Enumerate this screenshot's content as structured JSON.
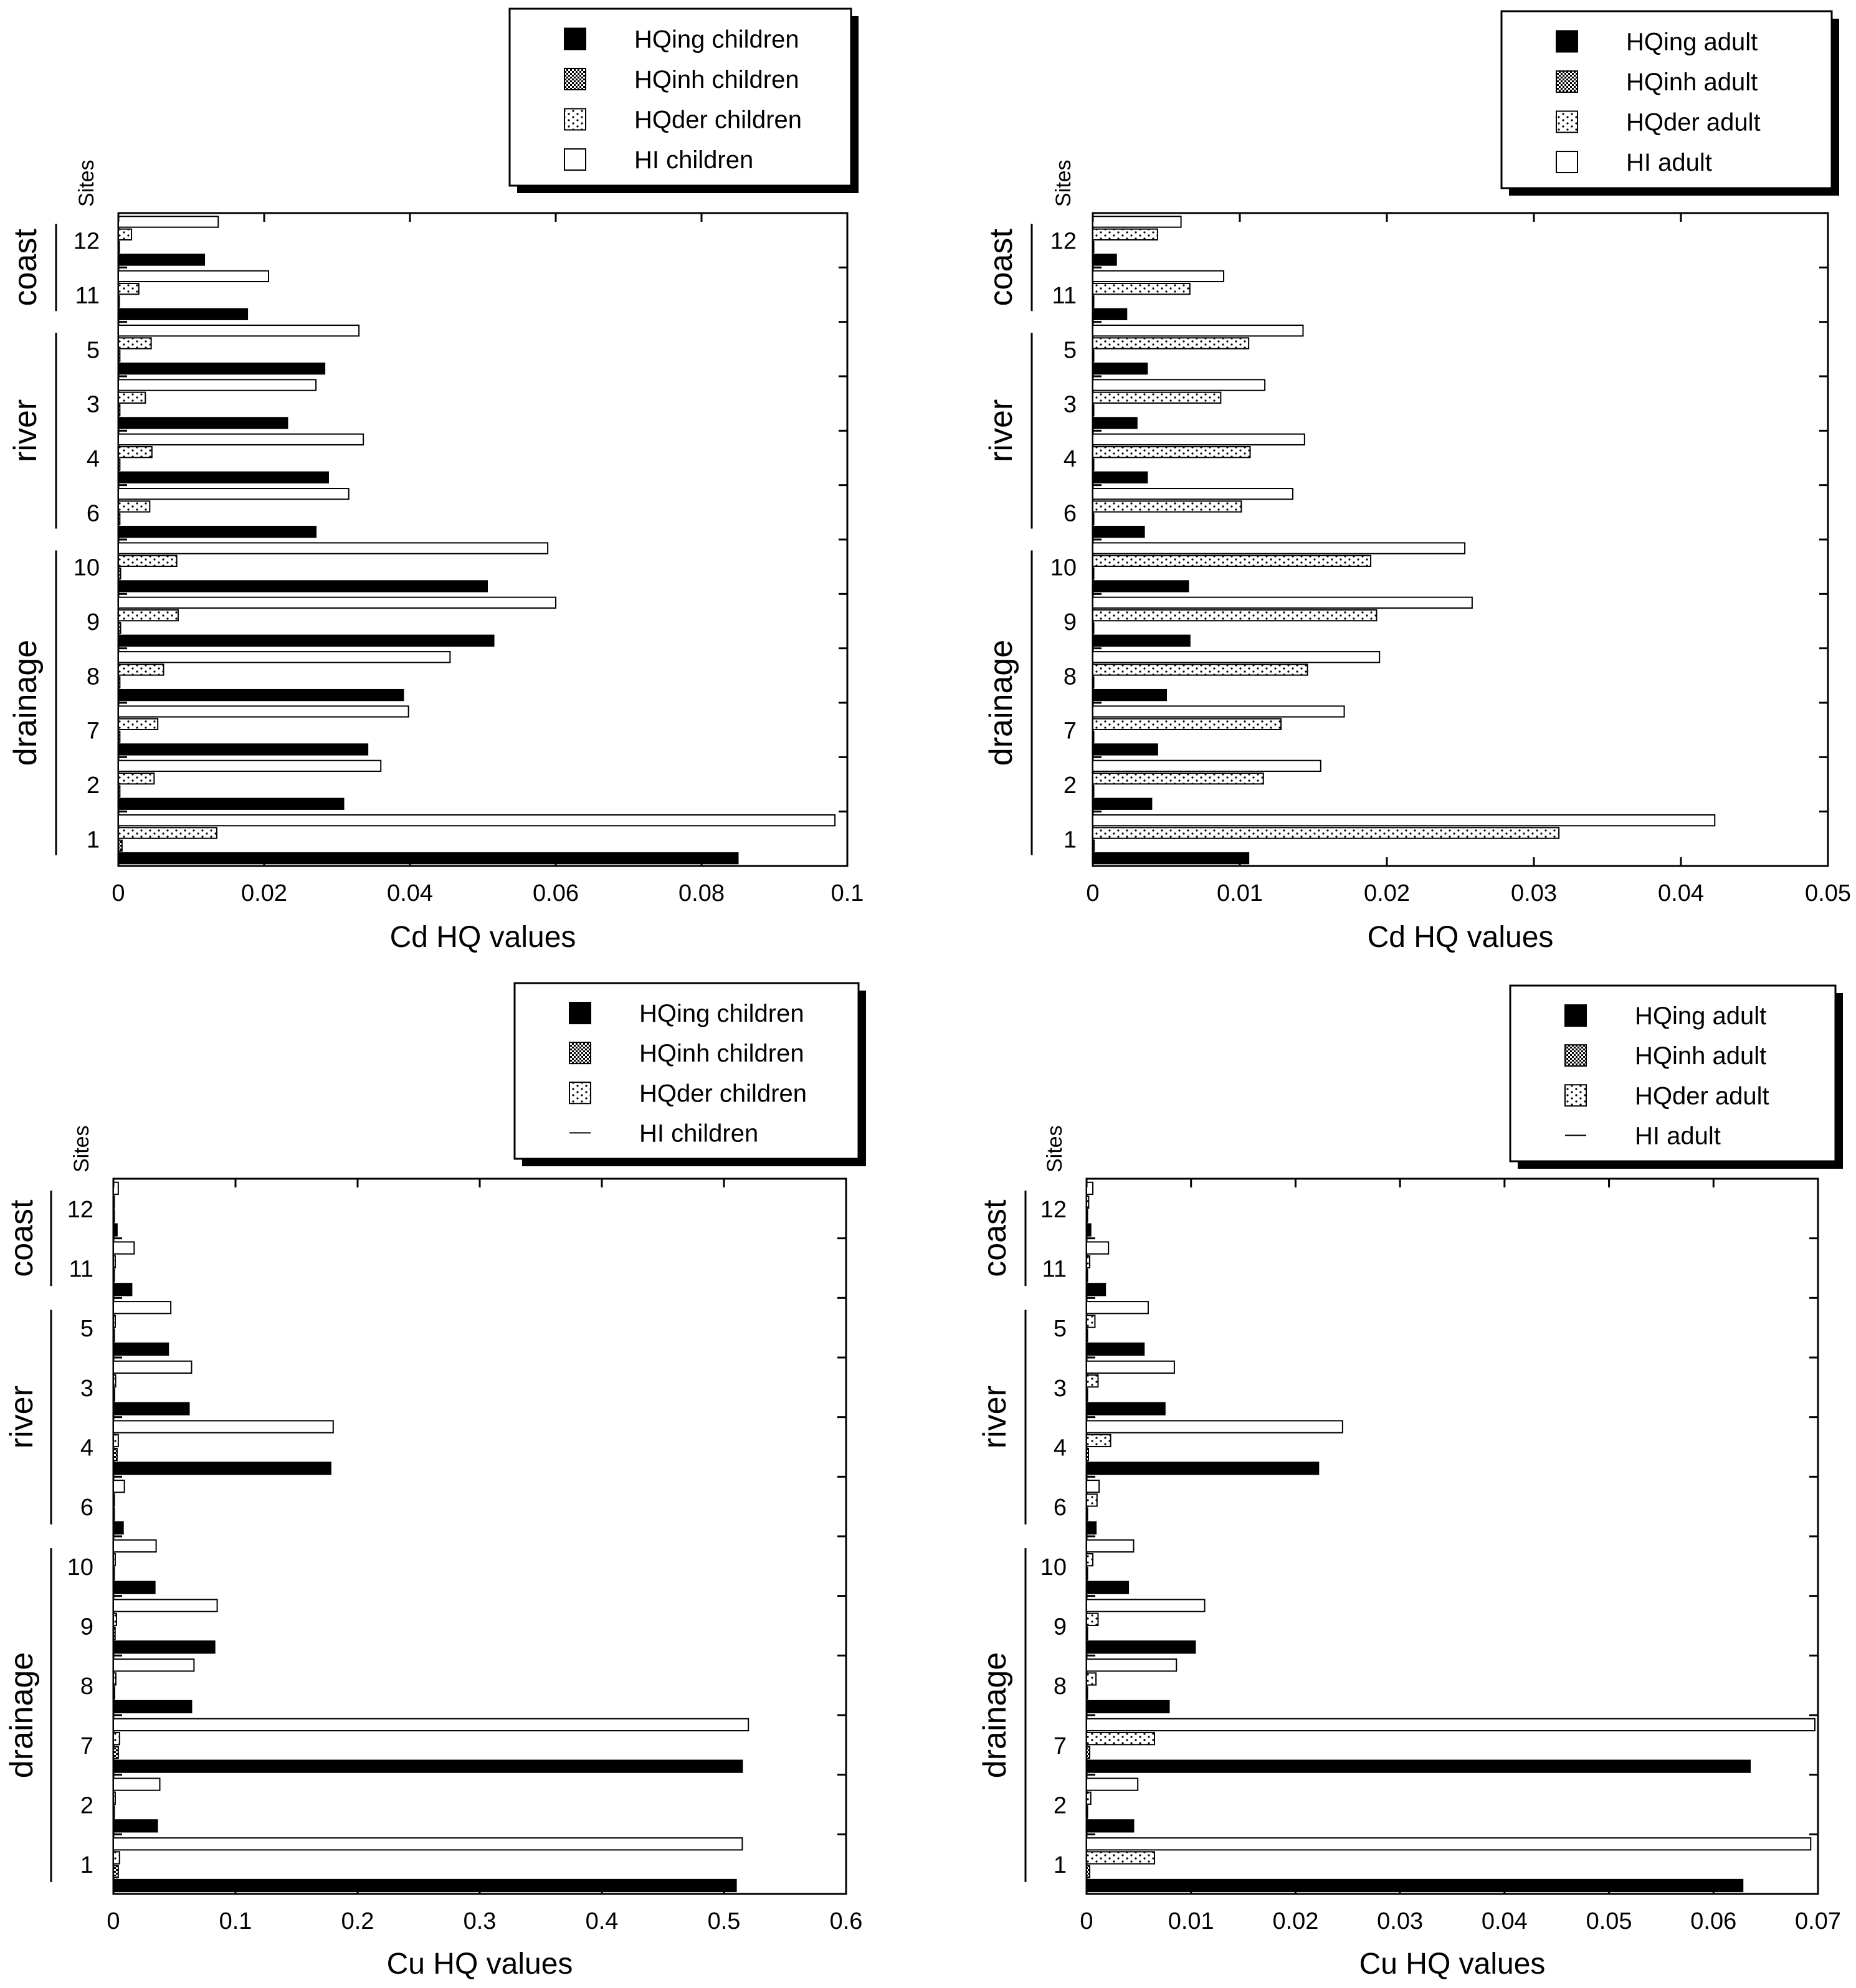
{
  "charts": [
    {
      "id": "cd-children",
      "chart_data": {
        "type": "bar",
        "orientation": "horizontal",
        "title": "",
        "xlabel": "Cd HQ values",
        "ylabel": "Sites",
        "xlim": [
          0,
          0.1
        ],
        "xticks": [
          "0",
          "0.02",
          "0.04",
          "0.06",
          "0.08",
          "0.1"
        ],
        "categories": [
          "12",
          "11",
          "5",
          "3",
          "4",
          "6",
          "10",
          "9",
          "8",
          "7",
          "2",
          "1"
        ],
        "groups": [
          {
            "label": "coast",
            "sites": [
              "12",
              "11"
            ]
          },
          {
            "label": "river",
            "sites": [
              "5",
              "3",
              "4",
              "6"
            ]
          },
          {
            "label": "drainage",
            "sites": [
              "10",
              "9",
              "8",
              "7",
              "2",
              "1"
            ]
          }
        ],
        "series": [
          {
            "name": "HQing children",
            "pattern": "solid",
            "values": [
              0.0118,
              0.0177,
              0.0283,
              0.0232,
              0.0288,
              0.0271,
              0.0506,
              0.0515,
              0.0391,
              0.0342,
              0.0309,
              0.085
            ]
          },
          {
            "name": "HQinh children",
            "pattern": "dense",
            "values": [
              0.0001,
              0.0001,
              0.0002,
              0.0002,
              0.0002,
              0.0002,
              0.0003,
              0.0003,
              0.0002,
              0.0002,
              0.0002,
              0.0005
            ]
          },
          {
            "name": "HQder children",
            "pattern": "dots",
            "values": [
              0.0018,
              0.0028,
              0.0045,
              0.0037,
              0.0046,
              0.0043,
              0.008,
              0.0082,
              0.0062,
              0.0054,
              0.0049,
              0.0135
            ]
          },
          {
            "name": "HI children",
            "pattern": "open",
            "values": [
              0.0137,
              0.0206,
              0.033,
              0.0271,
              0.0336,
              0.0316,
              0.0589,
              0.06,
              0.0455,
              0.0398,
              0.036,
              0.0983
            ]
          }
        ],
        "legend_position": "top-right"
      }
    },
    {
      "id": "cd-adult",
      "chart_data": {
        "type": "bar",
        "orientation": "horizontal",
        "title": "",
        "xlabel": "Cd HQ values",
        "ylabel": "Sites",
        "xlim": [
          0,
          0.05
        ],
        "xticks": [
          "0",
          "0.01",
          "0.02",
          "0.03",
          "0.04",
          "0.05"
        ],
        "categories": [
          "12",
          "11",
          "5",
          "3",
          "4",
          "6",
          "10",
          "9",
          "8",
          "7",
          "2",
          "1"
        ],
        "groups": [
          {
            "label": "coast",
            "sites": [
              "12",
              "11"
            ]
          },
          {
            "label": "river",
            "sites": [
              "5",
              "3",
              "4",
              "6"
            ]
          },
          {
            "label": "drainage",
            "sites": [
              "10",
              "9",
              "8",
              "7",
              "2",
              "1"
            ]
          }
        ],
        "series": [
          {
            "name": "HQing adult",
            "pattern": "solid",
            "values": [
              0.0016,
              0.0023,
              0.0037,
              0.003,
              0.0037,
              0.0035,
              0.0065,
              0.0066,
              0.005,
              0.0044,
              0.004,
              0.0106
            ]
          },
          {
            "name": "HQinh adult",
            "pattern": "dense",
            "values": [
              2e-05,
              2e-05,
              3e-05,
              3e-05,
              3e-05,
              3e-05,
              5e-05,
              5e-05,
              4e-05,
              4e-05,
              3e-05,
              9e-05
            ]
          },
          {
            "name": "HQder adult",
            "pattern": "dots",
            "values": [
              0.0044,
              0.0066,
              0.0106,
              0.0087,
              0.0107,
              0.0101,
              0.0189,
              0.0193,
              0.0146,
              0.0128,
              0.0116,
              0.0317
            ]
          },
          {
            "name": "HI adult",
            "pattern": "open",
            "values": [
              0.006,
              0.0089,
              0.0143,
              0.0117,
              0.0144,
              0.0136,
              0.0253,
              0.0258,
              0.0195,
              0.0171,
              0.0155,
              0.0423
            ]
          }
        ],
        "legend_position": "top-right"
      }
    },
    {
      "id": "cu-children",
      "chart_data": {
        "type": "bar",
        "orientation": "horizontal",
        "title": "",
        "xlabel": "Cu HQ values",
        "ylabel": "Sites",
        "xlim": [
          0,
          0.6
        ],
        "xticks": [
          "0",
          "0.1",
          "0.2",
          "0.3",
          "0.4",
          "0.5",
          "0.6"
        ],
        "categories": [
          "12",
          "11",
          "5",
          "3",
          "4",
          "6",
          "10",
          "9",
          "8",
          "7",
          "2",
          "1"
        ],
        "groups": [
          {
            "label": "coast",
            "sites": [
              "12",
              "11"
            ]
          },
          {
            "label": "river",
            "sites": [
              "5",
              "3",
              "4",
              "6"
            ]
          },
          {
            "label": "drainage",
            "sites": [
              "10",
              "9",
              "8",
              "7",
              "2",
              "1"
            ]
          }
        ],
        "series": [
          {
            "name": "HQing children",
            "pattern": "solid",
            "values": [
              0.003,
              0.015,
              0.045,
              0.062,
              0.178,
              0.008,
              0.034,
              0.083,
              0.064,
              0.515,
              0.036,
              0.51
            ]
          },
          {
            "name": "HQinh children",
            "pattern": "dense",
            "values": [
              0.0001,
              0.0003,
              0.0008,
              0.001,
              0.003,
              0.0002,
              0.0006,
              0.0014,
              0.001,
              0.004,
              0.0006,
              0.004
            ]
          },
          {
            "name": "HQder children",
            "pattern": "dots",
            "values": [
              0.0005,
              0.0015,
              0.0015,
              0.0018,
              0.004,
              0.0008,
              0.0015,
              0.0025,
              0.002,
              0.005,
              0.0015,
              0.005
            ]
          },
          {
            "name": "HI children",
            "pattern": "open",
            "values": [
              0.004,
              0.017,
              0.047,
              0.064,
              0.18,
              0.009,
              0.035,
              0.085,
              0.066,
              0.52,
              0.038,
              0.515
            ]
          }
        ],
        "legend_position": "top-right"
      }
    },
    {
      "id": "cu-adult",
      "chart_data": {
        "type": "bar",
        "orientation": "horizontal",
        "title": "",
        "xlabel": "Cu HQ values",
        "ylabel": "Sites",
        "xlim": [
          0,
          0.07
        ],
        "xticks": [
          "0",
          "0.01",
          "0.02",
          "0.03",
          "0.04",
          "0.05",
          "0.06",
          "0.07"
        ],
        "categories": [
          "12",
          "11",
          "5",
          "3",
          "4",
          "6",
          "10",
          "9",
          "8",
          "7",
          "2",
          "1"
        ],
        "groups": [
          {
            "label": "coast",
            "sites": [
              "12",
              "11"
            ]
          },
          {
            "label": "river",
            "sites": [
              "5",
              "3",
              "4",
              "6"
            ]
          },
          {
            "label": "drainage",
            "sites": [
              "10",
              "9",
              "8",
              "7",
              "2",
              "1"
            ]
          }
        ],
        "series": [
          {
            "name": "HQing adult",
            "pattern": "solid",
            "values": [
              0.0004,
              0.0018,
              0.0055,
              0.0075,
              0.0222,
              0.0009,
              0.004,
              0.0104,
              0.0079,
              0.0635,
              0.0045,
              0.0628
            ]
          },
          {
            "name": "HQinh adult",
            "pattern": "dense",
            "values": [
              1e-05,
              2e-05,
              5e-05,
              6e-05,
              0.00018,
              1e-05,
              4e-05,
              8e-05,
              6e-05,
              0.0003,
              4e-05,
              0.0003
            ]
          },
          {
            "name": "HQder adult",
            "pattern": "dots",
            "values": [
              0.0002,
              0.0003,
              0.0008,
              0.0011,
              0.0023,
              0.001,
              0.0006,
              0.0011,
              0.0009,
              0.0065,
              0.0004,
              0.0065
            ]
          },
          {
            "name": "HI adult",
            "pattern": "open",
            "values": [
              0.0006,
              0.0021,
              0.0059,
              0.0084,
              0.0245,
              0.0012,
              0.0045,
              0.0113,
              0.0086,
              0.0697,
              0.0049,
              0.0693
            ]
          }
        ],
        "legend_position": "top-right"
      }
    }
  ]
}
